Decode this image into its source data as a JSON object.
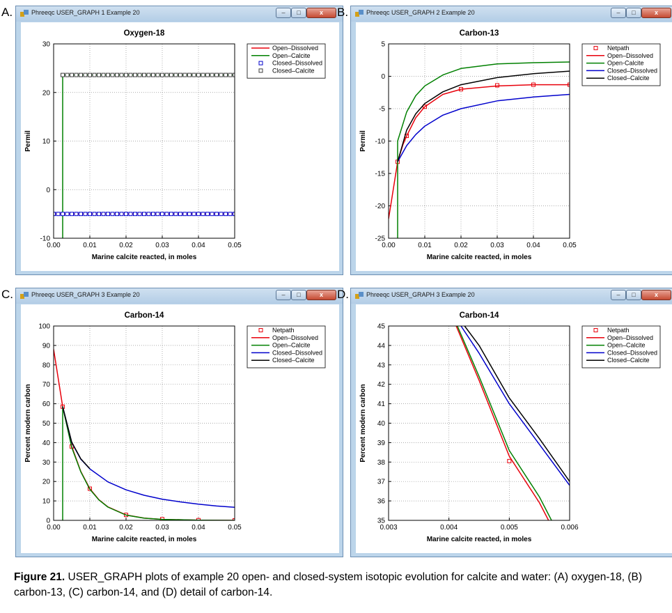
{
  "panels": [
    {
      "letter": "A.",
      "window_title": "Phreeqc USER_GRAPH 1 Example 20",
      "controls": {
        "minimize": "–",
        "maximize": "□",
        "close": "x"
      },
      "chart_data": {
        "type": "line",
        "title": "Oxygen-18",
        "xlabel": "Marine calcite reacted, in moles",
        "ylabel": "Permil",
        "xlim": [
          0,
          0.05
        ],
        "ylim": [
          -10,
          30
        ],
        "xticks": [
          0,
          0.01,
          0.02,
          0.03,
          0.04,
          0.05
        ],
        "xtick_labels": [
          "0.00",
          "0.01",
          "0.02",
          "0.03",
          "0.04",
          "0.05"
        ],
        "yticks": [
          -10,
          0,
          10,
          20,
          30
        ],
        "ytick_labels": [
          "-10",
          "0",
          "10",
          "20",
          "30"
        ],
        "grid": true,
        "legend_position": "top-right",
        "series": [
          {
            "name": "Open–Dissolved",
            "color": "#e8000b",
            "style": "line",
            "x": [
              0,
              0.05
            ],
            "y": [
              -5,
              -5
            ]
          },
          {
            "name": "Open–Calcite",
            "color": "#008000",
            "style": "line",
            "x": [
              0.0025,
              0.0025,
              0.05
            ],
            "y": [
              -10,
              23.6,
              23.6
            ]
          },
          {
            "name": "Closed–Dissolved",
            "color": "#0000cc",
            "style": "markers",
            "marker_step": 0.00125,
            "x_range": [
              0,
              0.05
            ],
            "y": -5
          },
          {
            "name": "Closed–Calcite",
            "color": "#3c3c3c",
            "style": "markers",
            "marker_step": 0.00125,
            "x_range": [
              0.0025,
              0.05
            ],
            "y": 23.6
          }
        ]
      }
    },
    {
      "letter": "B.",
      "window_title": "Phreeqc USER_GRAPH 2 Example 20",
      "controls": {
        "minimize": "–",
        "maximize": "□",
        "close": "x"
      },
      "chart_data": {
        "type": "line",
        "title": "Carbon-13",
        "xlabel": "Marine calcite reacted, in moles",
        "ylabel": "Permil",
        "xlim": [
          0,
          0.05
        ],
        "ylim": [
          -25,
          5
        ],
        "xticks": [
          0,
          0.01,
          0.02,
          0.03,
          0.04,
          0.05
        ],
        "xtick_labels": [
          "0.00",
          "0.01",
          "0.02",
          "0.03",
          "0.04",
          "0.05"
        ],
        "yticks": [
          -25,
          -20,
          -15,
          -10,
          -5,
          0,
          5
        ],
        "ytick_labels": [
          "-25",
          "-20",
          "-15",
          "-10",
          "-5",
          "0",
          "5"
        ],
        "grid": true,
        "legend_position": "top-right",
        "series": [
          {
            "name": "Netpath",
            "color": "#e8000b",
            "style": "markers",
            "x": [
              0.0025,
              0.005,
              0.01,
              0.02,
              0.03,
              0.04,
              0.05
            ],
            "y": [
              -13.2,
              -9.2,
              -4.7,
              -2.0,
              -1.4,
              -1.3,
              -1.3
            ]
          },
          {
            "name": "Open–Dissolved",
            "color": "#e8000b",
            "style": "line",
            "x": [
              0,
              0.001,
              0.0025,
              0.004,
              0.005,
              0.0075,
              0.01,
              0.015,
              0.02,
              0.03,
              0.04,
              0.05
            ],
            "y": [
              -22,
              -18.5,
              -13.2,
              -10.5,
              -9.2,
              -6.4,
              -4.7,
              -2.8,
              -2.0,
              -1.5,
              -1.3,
              -1.3
            ]
          },
          {
            "name": "Open-Calcite",
            "color": "#008000",
            "style": "line",
            "x": [
              0.0025,
              0.0025,
              0.005,
              0.0075,
              0.01,
              0.015,
              0.02,
              0.03,
              0.04,
              0.05
            ],
            "y": [
              -25,
              -10,
              -5.5,
              -3.0,
              -1.5,
              0.2,
              1.2,
              1.9,
              2.1,
              2.2
            ]
          },
          {
            "name": "Closed–Dissolved",
            "color": "#0000cc",
            "style": "line",
            "x": [
              0.0025,
              0.005,
              0.0075,
              0.01,
              0.015,
              0.02,
              0.03,
              0.04,
              0.05
            ],
            "y": [
              -13.2,
              -10.7,
              -9.0,
              -7.7,
              -6.0,
              -5.0,
              -3.8,
              -3.2,
              -2.8
            ]
          },
          {
            "name": "Closed–Calcite",
            "color": "#000000",
            "style": "line",
            "x": [
              0.0025,
              0.005,
              0.0075,
              0.01,
              0.015,
              0.02,
              0.03,
              0.04,
              0.05
            ],
            "y": [
              -13.2,
              -8.3,
              -5.8,
              -4.2,
              -2.4,
              -1.3,
              -0.2,
              0.4,
              0.8
            ]
          }
        ]
      }
    },
    {
      "letter": "C.",
      "window_title": "Phreeqc USER_GRAPH 3 Example 20",
      "controls": {
        "minimize": "–",
        "maximize": "□",
        "close": "x"
      },
      "chart_data": {
        "type": "line",
        "title": "Carbon-14",
        "xlabel": "Marine calcite reacted, in moles",
        "ylabel": "Percent modern carbon",
        "xlim": [
          0,
          0.05
        ],
        "ylim": [
          0,
          100
        ],
        "xticks": [
          0,
          0.01,
          0.02,
          0.03,
          0.04,
          0.05
        ],
        "xtick_labels": [
          "0.00",
          "0.01",
          "0.02",
          "0.03",
          "0.04",
          "0.05"
        ],
        "yticks": [
          0,
          10,
          20,
          30,
          40,
          50,
          60,
          70,
          80,
          90,
          100
        ],
        "ytick_labels": [
          "0",
          "10",
          "20",
          "30",
          "40",
          "50",
          "60",
          "70",
          "80",
          "90",
          "100"
        ],
        "grid": true,
        "legend_position": "top-right",
        "series": [
          {
            "name": "Netpath",
            "color": "#e8000b",
            "style": "markers",
            "x": [
              0.0025,
              0.005,
              0.01,
              0.02,
              0.03,
              0.04,
              0.05
            ],
            "y": [
              58.5,
              38,
              16.3,
              2.8,
              0.6,
              0.1,
              0
            ]
          },
          {
            "name": "Open–Dissolved",
            "color": "#e8000b",
            "style": "line",
            "x": [
              0,
              0.0025,
              0.005,
              0.0075,
              0.01,
              0.0125,
              0.015,
              0.02,
              0.025,
              0.03,
              0.04,
              0.05
            ],
            "y": [
              88,
              58.5,
              38.1,
              25.2,
              16.3,
              10.6,
              6.9,
              2.8,
              1.2,
              0.5,
              0.1,
              0
            ]
          },
          {
            "name": "Open–Calcite",
            "color": "#008000",
            "style": "line",
            "x": [
              0.0025,
              0.0025,
              0.005,
              0.0075,
              0.01,
              0.0125,
              0.015,
              0.02,
              0.025,
              0.03,
              0.04,
              0.05
            ],
            "y": [
              0,
              58.5,
              37.5,
              25,
              16,
              10.5,
              6.8,
              2.7,
              1.1,
              0.5,
              0.1,
              0
            ]
          },
          {
            "name": "Closed–Dissolved",
            "color": "#0000cc",
            "style": "line",
            "x": [
              0.0025,
              0.005,
              0.0075,
              0.01,
              0.015,
              0.02,
              0.025,
              0.03,
              0.035,
              0.04,
              0.045,
              0.05
            ],
            "y": [
              58.5,
              40,
              31.5,
              26.5,
              19.8,
              15.7,
              12.9,
              10.9,
              9.5,
              8.3,
              7.4,
              6.7
            ]
          },
          {
            "name": "Closed–Calcite",
            "color": "#000000",
            "style": "line",
            "x": [
              0.0025,
              0.005,
              0.0075,
              0.01
            ],
            "y": [
              58.5,
              40.2,
              31.7,
              26.6
            ]
          }
        ]
      }
    },
    {
      "letter": "D.",
      "window_title": "Phreeqc USER_GRAPH 3 Example 20",
      "controls": {
        "minimize": "–",
        "maximize": "□",
        "close": "x"
      },
      "chart_data": {
        "type": "line",
        "title": "Carbon-14",
        "xlabel": "Marine calcite reacted, in moles",
        "ylabel": "Percent modern carbon",
        "xlim": [
          0.003,
          0.006
        ],
        "ylim": [
          35,
          45
        ],
        "xticks": [
          0.003,
          0.004,
          0.005,
          0.006
        ],
        "xtick_labels": [
          "0.003",
          "0.004",
          "0.005",
          "0.006"
        ],
        "yticks": [
          35,
          36,
          37,
          38,
          39,
          40,
          41,
          42,
          43,
          44,
          45
        ],
        "ytick_labels": [
          "35",
          "36",
          "37",
          "38",
          "39",
          "40",
          "41",
          "42",
          "43",
          "44",
          "45"
        ],
        "grid": true,
        "legend_position": "top-right",
        "series": [
          {
            "name": "Netpath",
            "color": "#e8000b",
            "style": "markers",
            "x": [
              0.005
            ],
            "y": [
              38.05
            ]
          },
          {
            "name": "Open–Dissolved",
            "color": "#e8000b",
            "style": "line",
            "x": [
              0.00412,
              0.0045,
              0.005,
              0.0055,
              0.00565
            ],
            "y": [
              45,
              42.2,
              38.3,
              35.9,
              35
            ]
          },
          {
            "name": "Open–Calcite",
            "color": "#008000",
            "style": "line",
            "x": [
              0.00414,
              0.0045,
              0.005,
              0.0055,
              0.0057
            ],
            "y": [
              45,
              42.4,
              38.6,
              36.2,
              35
            ]
          },
          {
            "name": "Closed–Dissolved",
            "color": "#0000cc",
            "style": "line",
            "x": [
              0.0042,
              0.0045,
              0.005,
              0.0055,
              0.006
            ],
            "y": [
              45,
              43.6,
              41.0,
              38.9,
              36.8
            ]
          },
          {
            "name": "Closed–Calcite",
            "color": "#000000",
            "style": "line",
            "x": [
              0.00426,
              0.0045,
              0.005,
              0.0055,
              0.006
            ],
            "y": [
              45,
              44.0,
              41.3,
              39.2,
              37.0
            ]
          }
        ]
      }
    }
  ],
  "caption": {
    "label": "Figure 21.",
    "text": " USER_GRAPH plots of example 20 open- and closed-system isotopic evolution for calcite and water: (A) oxygen-18, (B) carbon-13, (C) carbon-14, and (D) detail of carbon-14."
  }
}
